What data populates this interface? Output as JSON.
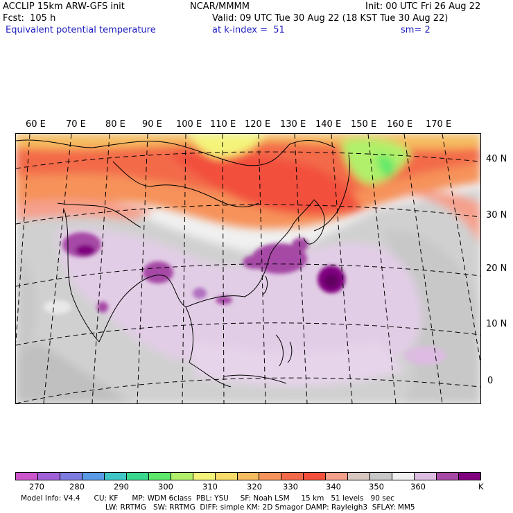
{
  "header": {
    "model": "ACCLIP 15km ARW-GFS init",
    "center": "NCAR/MMMM",
    "init": "Init: 00 UTC Fri 26 Aug 22",
    "fcst": "Fcst:  105 h",
    "valid": "Valid: 09 UTC Tue 30 Aug 22 (18 KST Tue 30 Aug 22)",
    "field": "Equivalent potential temperature",
    "level": "at k-index =  51",
    "smooth": "sm= 2"
  },
  "map": {
    "lon_labels": [
      "60 E",
      "70 E",
      "80 E",
      "90 E",
      "100 E",
      "110 E",
      "120 E",
      "130 E",
      "140 E",
      "150 E",
      "160 E",
      "170 E"
    ],
    "lat_labels": [
      "40 N",
      "30 N",
      "20 N",
      "10 N",
      "0"
    ]
  },
  "colorbar": {
    "colors": [
      "#cc55cc",
      "#a060d8",
      "#7c7ce0",
      "#5a9ae6",
      "#3ec6c6",
      "#3ad88e",
      "#5ce86a",
      "#b0f06a",
      "#f4f47a",
      "#f8dc6a",
      "#f6bc60",
      "#f6925a",
      "#f36a4a",
      "#f2503c",
      "#f5a08c",
      "#d8c6c0",
      "#c8c8c8",
      "#f0f0f0",
      "#dcbce0",
      "#a64aa6",
      "#800080"
    ],
    "ticks": [
      "270",
      "280",
      "290",
      "300",
      "310",
      "320",
      "330",
      "340",
      "350",
      "360"
    ],
    "unit": "K"
  },
  "footer": {
    "line1": "Model Info: V4.4      CU: KF      MP: WDM 6class  PBL: YSU     SF: Noah LSM     15 km   51 levels   90 sec",
    "line2": "LW: RRTMG   SW: RRTMG  DIFF: simple KM: 2D Smagor DAMP: Rayleigh3  SFLAY: MM5"
  }
}
